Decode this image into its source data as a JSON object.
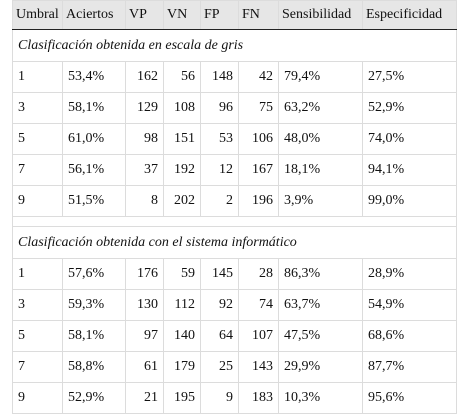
{
  "header": [
    "Umbral",
    "Aciertos",
    "VP",
    "VN",
    "FP",
    "FN",
    "Sensibilidad",
    "Especificidad"
  ],
  "sections": [
    {
      "title": "Clasificación obtenida en escala de gris",
      "rows": [
        [
          "1",
          "53,4%",
          "162",
          "56",
          "148",
          "42",
          "79,4%",
          "27,5%"
        ],
        [
          "3",
          "58,1%",
          "129",
          "108",
          "96",
          "75",
          "63,2%",
          "52,9%"
        ],
        [
          "5",
          "61,0%",
          "98",
          "151",
          "53",
          "106",
          "48,0%",
          "74,0%"
        ],
        [
          "7",
          "56,1%",
          "37",
          "192",
          "12",
          "167",
          "18,1%",
          "94,1%"
        ],
        [
          "9",
          "51,5%",
          "8",
          "202",
          "2",
          "196",
          "3,9%",
          "99,0%"
        ]
      ]
    },
    {
      "title": "Clasificación obtenida con el sistema informático",
      "rows": [
        [
          "1",
          "57,6%",
          "176",
          "59",
          "145",
          "28",
          "86,3%",
          "28,9%"
        ],
        [
          "3",
          "59,3%",
          "130",
          "112",
          "92",
          "74",
          "63,7%",
          "54,9%"
        ],
        [
          "5",
          "58,1%",
          "97",
          "140",
          "64",
          "107",
          "47,5%",
          "68,6%"
        ],
        [
          "7",
          "58,8%",
          "61",
          "179",
          "25",
          "143",
          "29,9%",
          "87,7%"
        ],
        [
          "9",
          "52,9%",
          "21",
          "195",
          "9",
          "183",
          "10,3%",
          "95,6%"
        ]
      ]
    }
  ]
}
